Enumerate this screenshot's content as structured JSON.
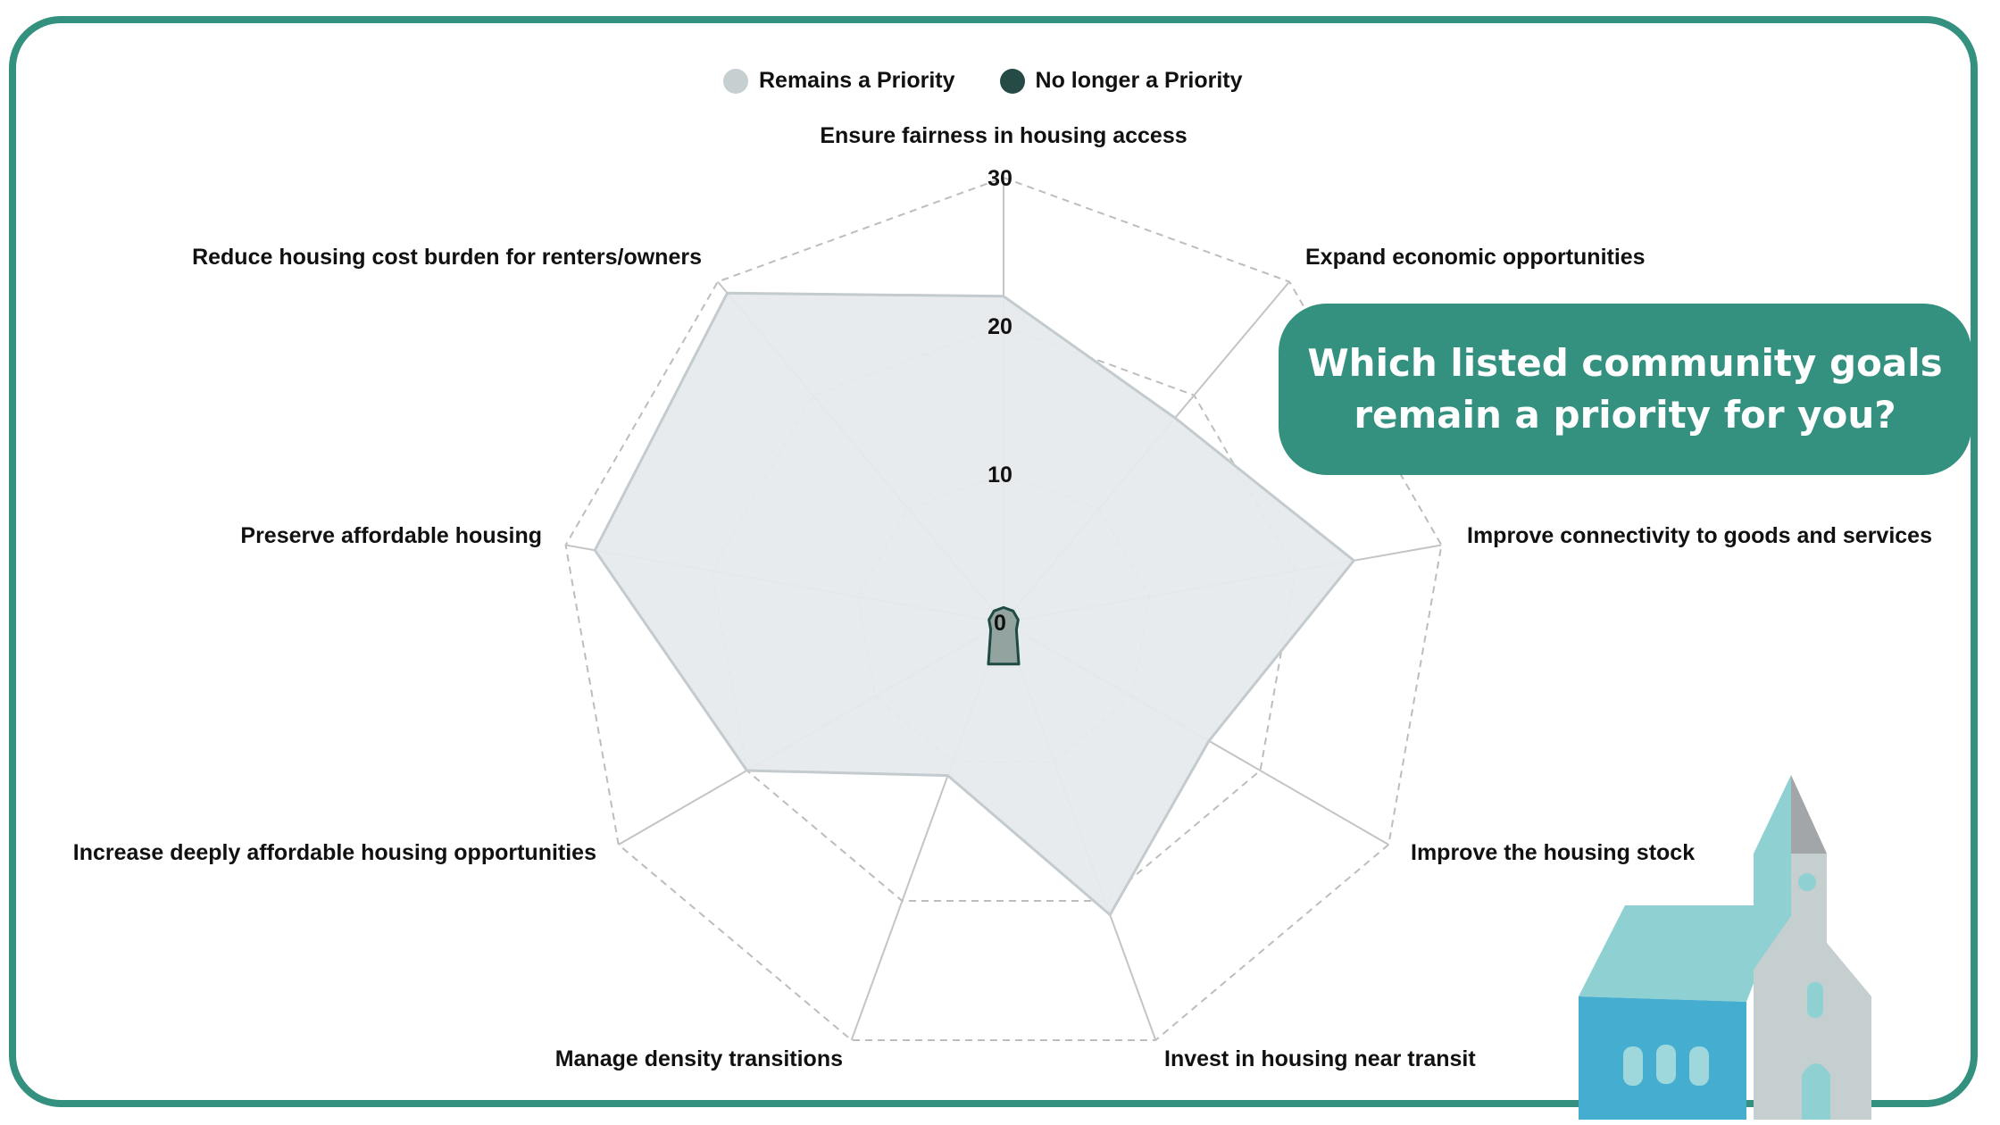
{
  "legend": {
    "remains": "Remains a Priority",
    "no_longer": "No longer a Priority"
  },
  "callout": {
    "line1": "Which listed community goals",
    "line2": "remain a priority for you?"
  },
  "colors": {
    "frame": "#35917f",
    "remains_fill": "#e6eaec",
    "remains_stroke": "#c3cbcf",
    "remains_legend": "#c6d0d1",
    "no_longer_fill": "#8a9b96",
    "no_longer_stroke": "#1f4a44",
    "no_longer_legend": "#264b46"
  },
  "chart_data": {
    "type": "radar",
    "axes": [
      "Ensure fairness in housing access",
      "Expand economic opportunities",
      "Improve connectivity to goods and services",
      "Improve the housing stock",
      "Invest in housing near transit",
      "Manage density transitions",
      "Increase deeply affordable housing opportunities",
      "Preserve affordable housing",
      "Reduce housing cost burden for renters/owners"
    ],
    "range": [
      0,
      30
    ],
    "ticks": [
      "0",
      "10",
      "20",
      "30"
    ],
    "series": [
      {
        "name": "Remains a Priority",
        "values": [
          22,
          18,
          24,
          16,
          21,
          11,
          20,
          28,
          29
        ]
      },
      {
        "name": "No longer a Priority",
        "values": [
          1,
          1,
          1,
          1,
          3,
          3,
          1,
          1,
          1
        ]
      }
    ],
    "legend_position": "top"
  }
}
